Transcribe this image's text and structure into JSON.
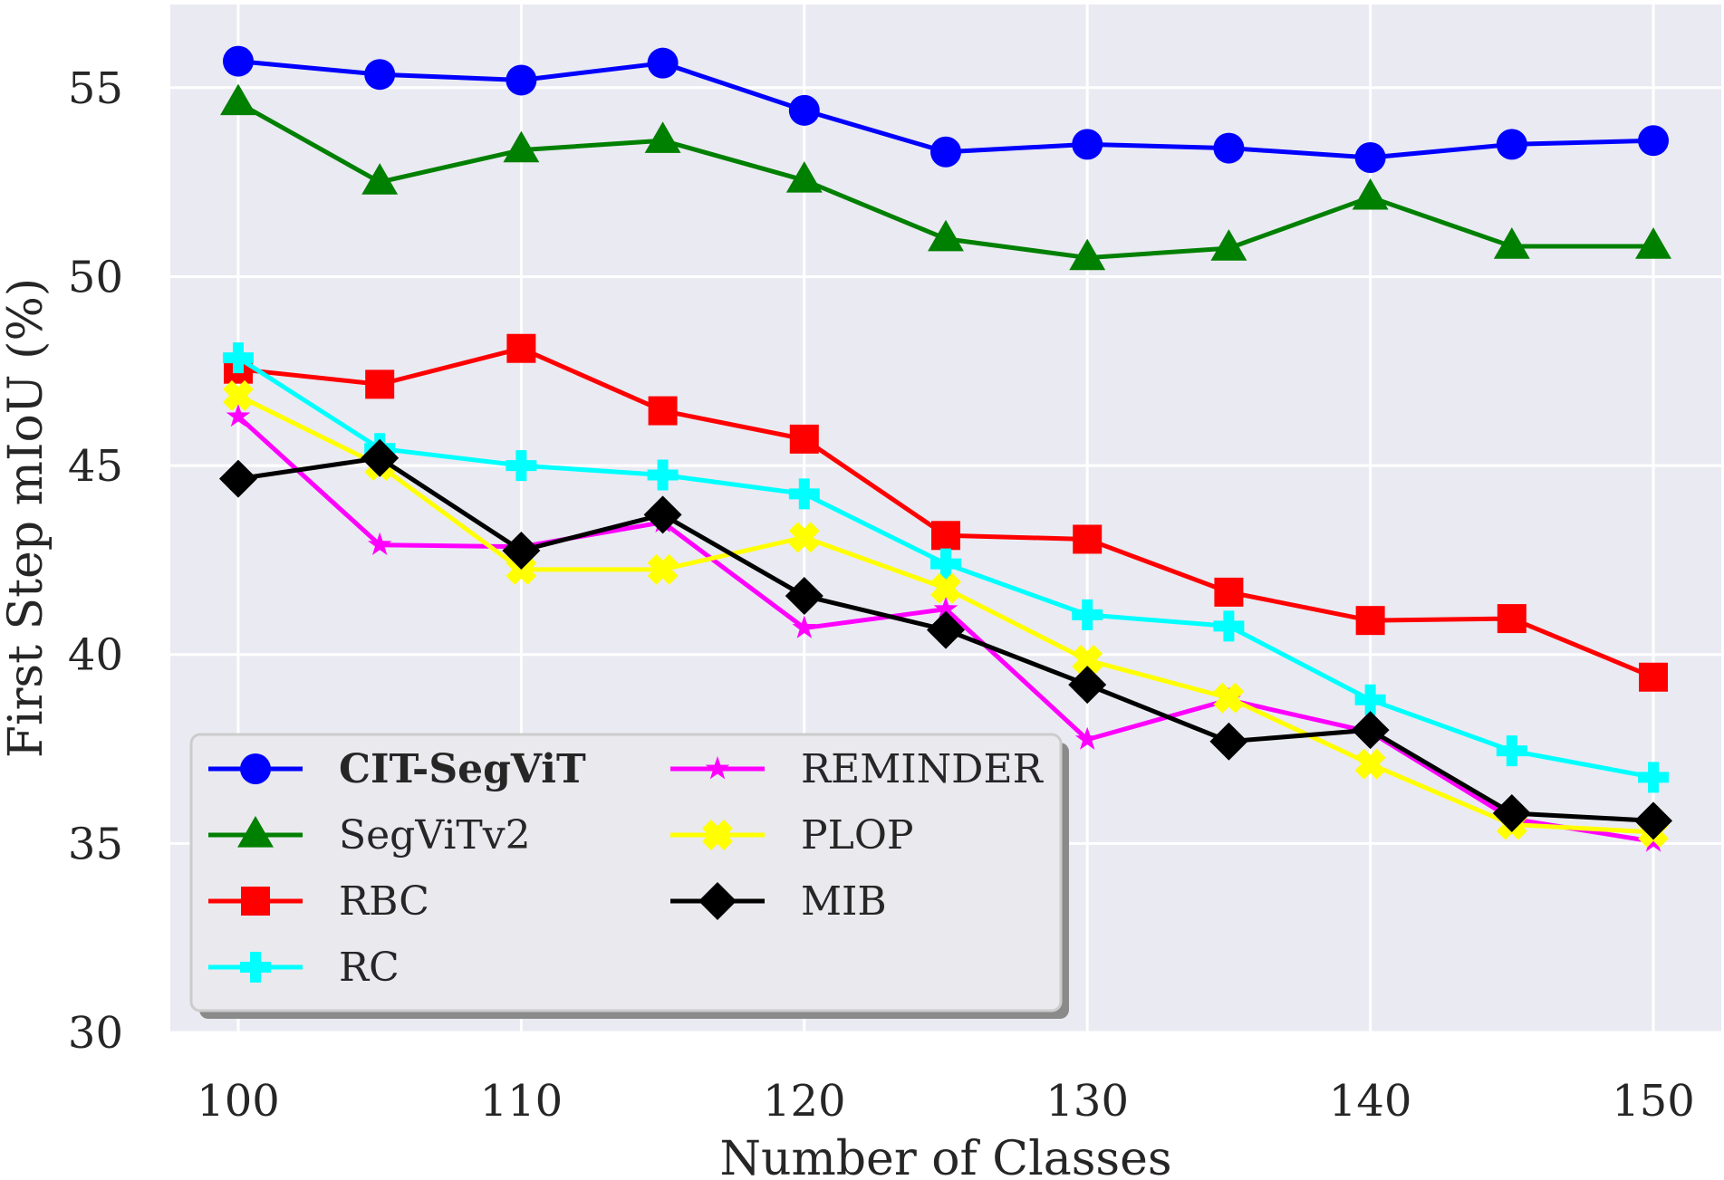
{
  "chart_data": {
    "type": "line",
    "title": "",
    "xlabel": "Number of Classes",
    "ylabel": "First Step mIoU (%)",
    "xlim": [
      97.6,
      152.4
    ],
    "ylim": [
      30,
      57.2
    ],
    "xticks": [
      100,
      110,
      120,
      130,
      140,
      150
    ],
    "yticks": [
      30,
      35,
      40,
      45,
      50,
      55
    ],
    "grid": true,
    "legend_position": "lower-left",
    "x": [
      100,
      105,
      110,
      115,
      120,
      125,
      130,
      135,
      140,
      145,
      150
    ],
    "series": [
      {
        "name": "CIT-SegViT",
        "color": "#0000ff",
        "marker": "circle",
        "bold": true,
        "values": [
          55.7,
          55.35,
          55.2,
          55.65,
          54.4,
          53.3,
          53.5,
          53.4,
          53.15,
          53.5,
          53.6
        ]
      },
      {
        "name": "SegViTv2",
        "color": "#008000",
        "marker": "triangle",
        "values": [
          54.6,
          52.5,
          53.35,
          53.6,
          52.55,
          51.0,
          50.5,
          50.75,
          52.1,
          50.8,
          50.8
        ]
      },
      {
        "name": "RBC",
        "color": "#ff0000",
        "marker": "square",
        "values": [
          47.55,
          47.15,
          48.1,
          46.45,
          45.7,
          43.15,
          43.05,
          41.65,
          40.9,
          40.95,
          39.4
        ]
      },
      {
        "name": "RC",
        "color": "#00ffff",
        "marker": "plus",
        "values": [
          47.85,
          45.45,
          45.0,
          44.75,
          44.25,
          42.4,
          41.05,
          40.75,
          38.8,
          37.45,
          36.75
        ]
      },
      {
        "name": "REMINDER",
        "color": "#ff00ff",
        "marker": "star",
        "values": [
          46.3,
          42.9,
          42.85,
          43.5,
          40.7,
          41.2,
          37.75,
          38.8,
          37.95,
          35.65,
          35.05
        ]
      },
      {
        "name": "PLOP",
        "color": "#ffff00",
        "marker": "x",
        "values": [
          46.85,
          45.0,
          42.25,
          42.25,
          43.1,
          41.75,
          39.85,
          38.85,
          37.1,
          35.5,
          35.3
        ]
      },
      {
        "name": "MIB",
        "color": "#000000",
        "marker": "diamond",
        "values": [
          44.65,
          45.2,
          42.75,
          43.7,
          41.55,
          40.65,
          39.2,
          37.7,
          38.0,
          35.8,
          35.6
        ]
      }
    ]
  }
}
